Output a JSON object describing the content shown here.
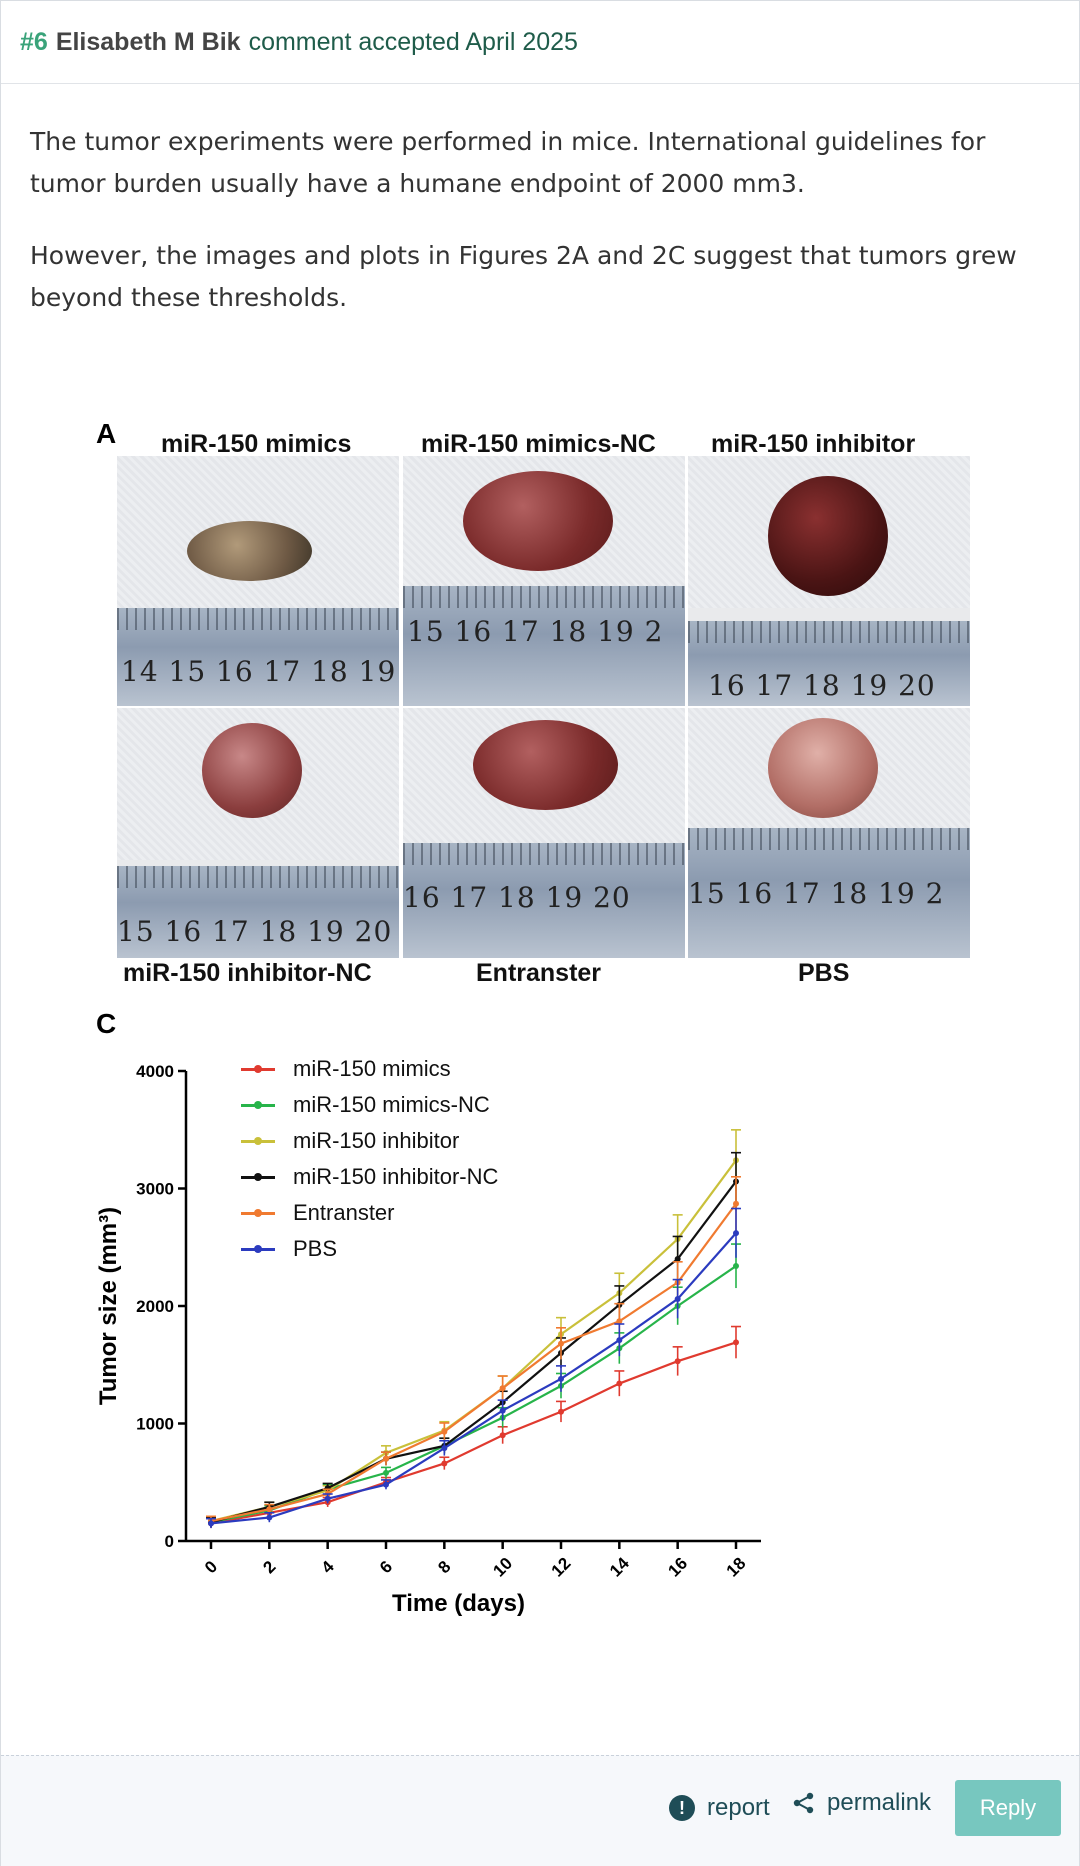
{
  "header": {
    "number": "#6",
    "author": "Elisabeth M Bik",
    "status": "comment accepted April 2025"
  },
  "body": {
    "paragraph1": "The tumor experiments were performed in mice. International guidelines for tumor burden usually have a humane endpoint of 2000 mm3.",
    "paragraph2": "However, the images and plots in Figures 2A and 2C suggest that tumors grew beyond these thresholds."
  },
  "figure": {
    "panel_a_letter": "A",
    "panel_c_letter": "C",
    "top_titles": [
      "miR-150 mimics",
      "miR-150 mimics-NC",
      "miR-150 inhibitor"
    ],
    "bottom_titles": [
      "miR-150 inhibitor-NC",
      "Entranster",
      "PBS"
    ],
    "ruler_numbers": [
      "14 15 16 17 18 19",
      "15 16 17 18 19 2",
      "16 17 18 19 20",
      "15 16 17 18 19 20",
      "16 17 18 19 20",
      "15 16 17 18 19 2"
    ]
  },
  "chart_data": {
    "type": "line",
    "xlabel": "Time (days)",
    "ylabel": "Tumor size (mm³)",
    "x": [
      0,
      2,
      4,
      6,
      8,
      10,
      12,
      14,
      16,
      18
    ],
    "ylim": [
      0,
      4000
    ],
    "yticks": [
      0,
      1000,
      2000,
      3000,
      4000
    ],
    "legend_position": "top-left",
    "series": [
      {
        "name": "miR-150 mimics",
        "color": "#e03a2f",
        "values": [
          150,
          240,
          330,
          500,
          660,
          900,
          1100,
          1340,
          1530,
          1690
        ]
      },
      {
        "name": "miR-150 mimics-NC",
        "color": "#27b44a",
        "values": [
          160,
          260,
          440,
          580,
          810,
          1050,
          1320,
          1640,
          2000,
          2340
        ]
      },
      {
        "name": "miR-150 inhibitor",
        "color": "#c9c03a",
        "values": [
          170,
          290,
          430,
          750,
          940,
          1300,
          1760,
          2110,
          2570,
          3240
        ]
      },
      {
        "name": "miR-150 inhibitor-NC",
        "color": "#111111",
        "values": [
          160,
          290,
          450,
          700,
          810,
          1180,
          1600,
          2010,
          2400,
          3060
        ]
      },
      {
        "name": "Entranster",
        "color": "#f07a30",
        "values": [
          170,
          270,
          400,
          700,
          930,
          1300,
          1680,
          1870,
          2200,
          2870
        ]
      },
      {
        "name": "PBS",
        "color": "#2b3bbf",
        "values": [
          150,
          200,
          360,
          480,
          790,
          1110,
          1380,
          1710,
          2060,
          2620
        ]
      }
    ]
  },
  "footer": {
    "report_label": "report",
    "permalink_label": "permalink",
    "reply_label": "Reply",
    "report_icon": "exclamation-circle-icon",
    "permalink_icon": "share-icon"
  }
}
